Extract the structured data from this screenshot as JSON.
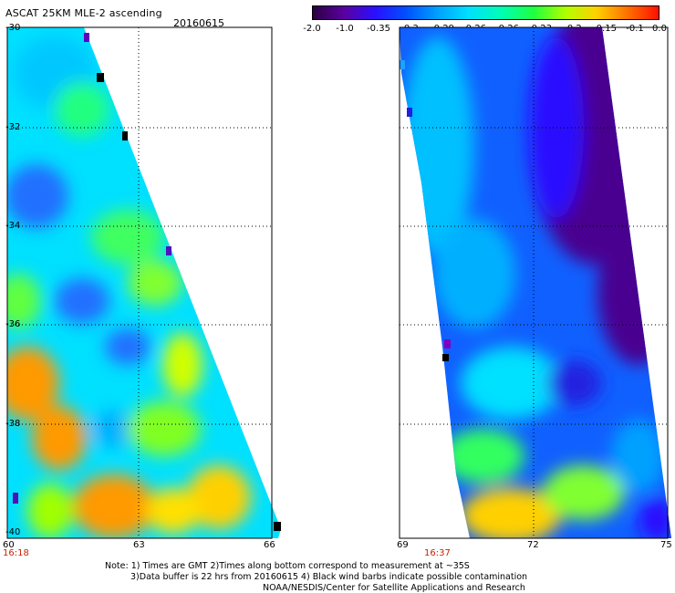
{
  "header": {
    "title": "ASCAT 25KM MLE-2 ascending",
    "date": "20160615"
  },
  "colorbar": {
    "labels": [
      "-2.0",
      "-1.0",
      "-0.35",
      "-0.3",
      "-0.29",
      "-0.26",
      "-0.26",
      "-0.23",
      "-0.2",
      "-0.15",
      "-0.1",
      "0.0"
    ],
    "colors": [
      "#2a0040",
      "#5a00a0",
      "#2a10ff",
      "#0050ff",
      "#00a0ff",
      "#00e0ff",
      "#00ffb0",
      "#20ff40",
      "#b0ff00",
      "#ffd000",
      "#ff7000",
      "#ff1000"
    ]
  },
  "axes": {
    "lat_labels": [
      "-30",
      "-32",
      "-34",
      "-36",
      "-38",
      "-40"
    ],
    "left_panel_lon_labels": [
      "60",
      "63",
      "66"
    ],
    "right_panel_lon_labels": [
      "69",
      "72",
      "75"
    ]
  },
  "times": {
    "left_pass": "16:18",
    "right_pass": "16:37"
  },
  "notes": {
    "line1": "Note: 1) Times are GMT 2)Times along bottom correspond to measurement at ~35S",
    "line2": "3)Data buffer is 22 hrs from 20160615 4) Black wind barbs indicate possible contamination",
    "line3": "NOAA/NESDIS/Center for Satellite Applications and Research"
  }
}
